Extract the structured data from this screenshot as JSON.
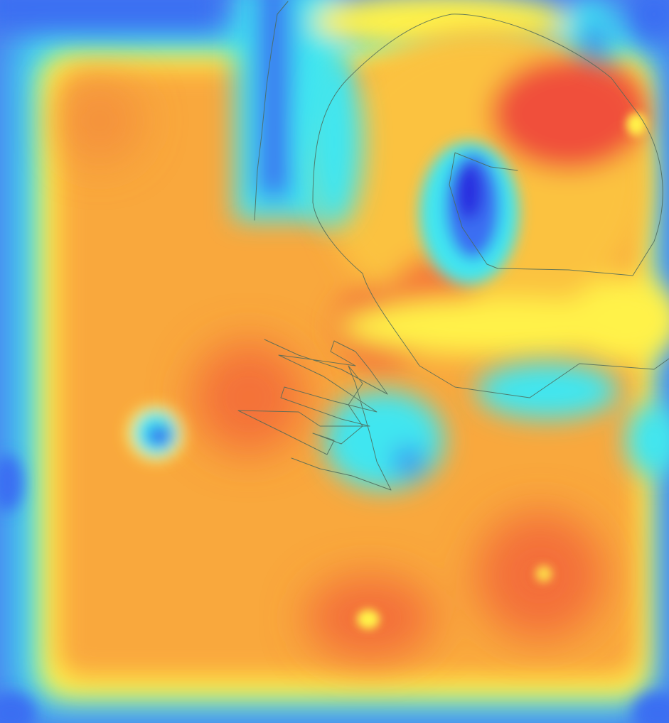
{
  "image": {
    "kind": "heatmap-overlay-on-sketch",
    "colormap": "jet",
    "palette": {
      "deep_blue": "#2a2fe0",
      "blue": "#3b6ef2",
      "cyan": "#3fe6f0",
      "yellow": "#fff24a",
      "orange": "#f9a83c",
      "red": "#f0503a",
      "stroke": "#4d6a5a"
    },
    "sketch_strokes": [
      "head-outline",
      "eye-stroke",
      "scribble",
      "left-vertical-stroke"
    ]
  }
}
